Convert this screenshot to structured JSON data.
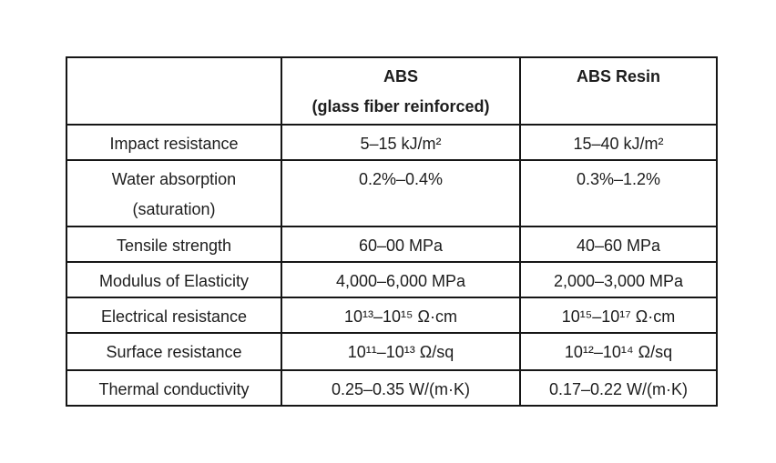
{
  "chart_data": {
    "type": "table",
    "header": {
      "property": "",
      "abs_glass_fiber": "ABS\n(glass fiber reinforced)",
      "abs_resin": "ABS Resin"
    },
    "rows": [
      {
        "property": "Impact resistance",
        "abs_glass_fiber": "5–15 kJ/m²",
        "abs_resin": "15–40 kJ/m²"
      },
      {
        "property": "Water absorption\n(saturation)",
        "abs_glass_fiber": "0.2%–0.4%",
        "abs_resin": "0.3%–1.2%"
      },
      {
        "property": "Tensile strength",
        "abs_glass_fiber": "60–00 MPa",
        "abs_resin": "40–60 MPa"
      },
      {
        "property": "Modulus of Elasticity",
        "abs_glass_fiber": "4,000–6,000 MPa",
        "abs_resin": "2,000–3,000 MPa"
      },
      {
        "property": "Electrical resistance",
        "abs_glass_fiber": "10¹³–10¹⁵ Ω·cm",
        "abs_resin": "10¹⁵–10¹⁷ Ω·cm"
      },
      {
        "property": "Surface resistance",
        "abs_glass_fiber": "10¹¹–10¹³ Ω/sq",
        "abs_resin": "10¹²–10¹⁴ Ω/sq"
      },
      {
        "property": "Thermal conductivity",
        "abs_glass_fiber": "0.25–0.35 W/(m·K)",
        "abs_resin": "0.17–0.22 W/(m·K)"
      }
    ]
  },
  "colors": {
    "background": "#ffffff",
    "border": "#161616",
    "text": "#1d1d1d"
  }
}
